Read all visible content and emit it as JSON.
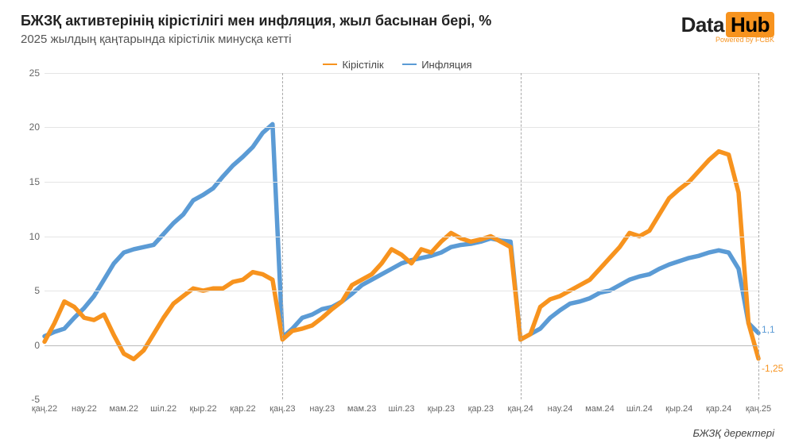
{
  "title": "БЖЗҚ активтерінің кірістілігі мен инфляция, жыл басынан бері, %",
  "subtitle": "2025 жылдың қаңтарында кірістілік минусқа кетті",
  "logo": {
    "left": "Data",
    "right": "Hub",
    "sub": "Powered by FCBK"
  },
  "legend": {
    "series1": {
      "label": "Кірістілік",
      "color": "#f7931e"
    },
    "series2": {
      "label": "Инфляция",
      "color": "#5b9bd5"
    }
  },
  "source": "БЖЗҚ деректері",
  "chart": {
    "type": "line",
    "ylim": [
      -5,
      25
    ],
    "yticks": [
      -5,
      0,
      5,
      10,
      15,
      20,
      25
    ],
    "xticks": [
      "қаң.22",
      "нау.22",
      "мам.22",
      "шіл.22",
      "қыр.22",
      "қар.22",
      "қаң.23",
      "нау.23",
      "мам.23",
      "шіл.23",
      "қыр.23",
      "қар.23",
      "қаң.24",
      "нау.24",
      "мам.24",
      "шіл.24",
      "қыр.24",
      "қар.24",
      "қаң.25"
    ],
    "xtick_indices_of_73": [
      0,
      4,
      8,
      12,
      16,
      20,
      24,
      28,
      32,
      36,
      40,
      44,
      48,
      52,
      56,
      60,
      64,
      68,
      72
    ],
    "year_divider_indices_of_73": [
      24,
      48,
      72
    ],
    "grid_color": "#e5e5e5",
    "divider_color": "#aaaaaa",
    "background": "#ffffff",
    "line_width": 2.2,
    "series": {
      "returns": {
        "color": "#f7931e",
        "end_label": "-1,25",
        "end_label_color": "#f7931e",
        "values": [
          0.3,
          2.0,
          4.0,
          3.5,
          2.5,
          2.3,
          2.8,
          0.9,
          -0.8,
          -1.3,
          -0.5,
          1.0,
          2.5,
          3.8,
          4.5,
          5.2,
          5.0,
          5.2,
          5.2,
          5.8,
          6.0,
          6.7,
          6.5,
          6.0,
          0.5,
          1.3,
          1.5,
          1.8,
          2.5,
          3.3,
          4.0,
          5.5,
          6.0,
          6.5,
          7.5,
          8.8,
          8.3,
          7.5,
          8.8,
          8.5,
          9.5,
          10.3,
          9.8,
          9.5,
          9.7,
          10.0,
          9.5,
          9.0,
          0.5,
          1.0,
          3.5,
          4.2,
          4.5,
          5.0,
          5.5,
          6.0,
          7.0,
          8.0,
          9.0,
          10.3,
          10.0,
          10.5,
          12.0,
          13.5,
          14.3,
          15.0,
          16.0,
          17.0,
          17.8,
          17.5,
          14.0,
          2.0,
          -1.25
        ]
      },
      "inflation": {
        "color": "#5b9bd5",
        "end_label": "1,1",
        "end_label_color": "#5b9bd5",
        "values": [
          0.8,
          1.2,
          1.5,
          2.5,
          3.4,
          4.5,
          6.0,
          7.5,
          8.5,
          8.8,
          9.0,
          9.2,
          10.2,
          11.2,
          12.0,
          13.3,
          13.8,
          14.4,
          15.5,
          16.5,
          17.3,
          18.2,
          19.5,
          20.3,
          0.7,
          1.5,
          2.5,
          2.8,
          3.3,
          3.5,
          4.0,
          4.7,
          5.5,
          6.0,
          6.5,
          7.0,
          7.5,
          7.8,
          8.0,
          8.2,
          8.5,
          9.0,
          9.2,
          9.3,
          9.5,
          9.8,
          9.6,
          9.5,
          0.5,
          1.0,
          1.5,
          2.5,
          3.2,
          3.8,
          4.0,
          4.3,
          4.8,
          5.0,
          5.5,
          6.0,
          6.3,
          6.5,
          7.0,
          7.4,
          7.7,
          8.0,
          8.2,
          8.5,
          8.7,
          8.5,
          7.0,
          2.0,
          1.1
        ]
      }
    }
  }
}
